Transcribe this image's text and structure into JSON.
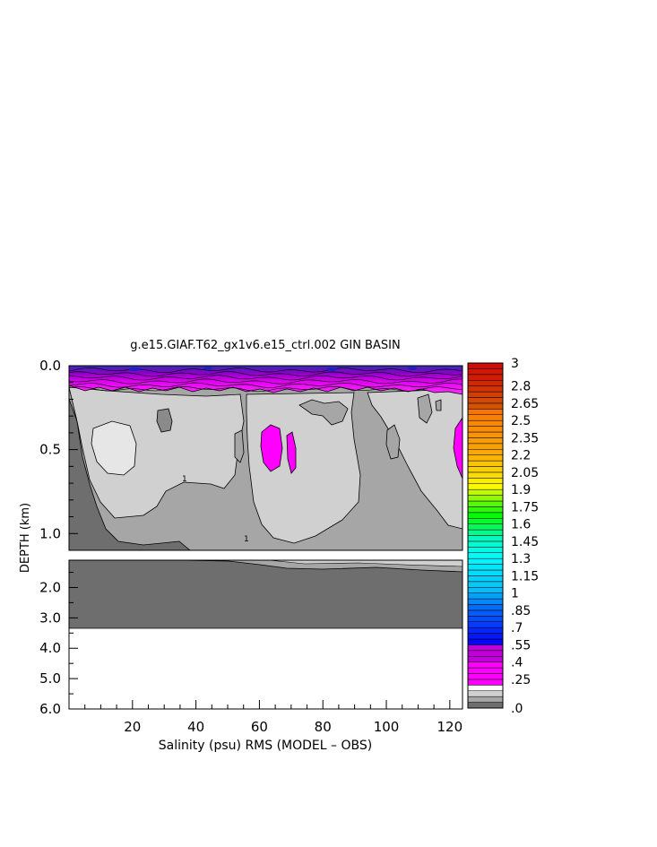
{
  "chart_data": {
    "type": "heatmap",
    "title": "g.e15.GIAF.T62_gx1v6.e15_ctrl.002 GIN BASIN",
    "xlabel": "Salinity (psu) RMS (MODEL – OBS)",
    "ylabel": "DEPTH (km)",
    "xlim": [
      0,
      124
    ],
    "x_ticks": [
      "20",
      "40",
      "60",
      "80",
      "100",
      "120"
    ],
    "x_tick_values": [
      20,
      40,
      60,
      80,
      100,
      120
    ],
    "upper_panel": {
      "ylim": [
        0.0,
        1.1
      ],
      "y_ticks": [
        "0.0",
        "0.5",
        "1.0"
      ],
      "y_tick_values": [
        0.0,
        0.5,
        1.0
      ]
    },
    "lower_panel": {
      "ylim": [
        1.1,
        6.0
      ],
      "y_ticks": [
        "2.0",
        "3.0",
        "4.0",
        "5.0",
        "6.0"
      ],
      "y_tick_values": [
        2.0,
        3.0,
        4.0,
        5.0,
        6.0
      ],
      "data_bottom_km": 3.3
    },
    "contour_labels": [
      "1"
    ],
    "colorbar": {
      "min": 0.0,
      "max": 3.0,
      "step": 0.05,
      "labels": [
        "3",
        "2.8",
        "2.65",
        "2.5",
        "2.35",
        "2.2",
        "2.05",
        "1.9",
        "1.75",
        "1.6",
        "1.45",
        "1.3",
        "1.15",
        "1",
        ".85",
        ".7",
        ".55",
        ".4",
        ".25",
        ".0"
      ],
      "label_values": [
        3.0,
        2.8,
        2.65,
        2.5,
        2.35,
        2.2,
        2.05,
        1.9,
        1.75,
        1.6,
        1.45,
        1.3,
        1.15,
        1.0,
        0.85,
        0.7,
        0.55,
        0.4,
        0.25,
        0.0
      ]
    },
    "fill_colors": {
      "level_0_0.05": "#6e6e6e",
      "level_0.05_0.1": "#a6a6a6",
      "level_0.1_0.15": "#d0d0d0",
      "level_0.2_0.4": "#ff00ff",
      "level_0.4_0.55": "#c000d8",
      "level_0.55_0.7": "#2020c0",
      "level_0.7_0.85": "#2060ff"
    }
  }
}
